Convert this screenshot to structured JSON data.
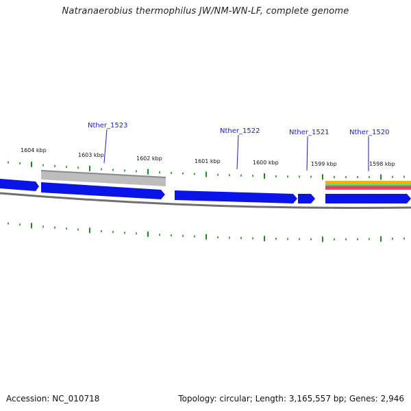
{
  "title": "Natranaerobius thermophilus JW/NM-WN-LF, complete genome",
  "footer": {
    "accession": "Accession: NC_010718",
    "topology": "Topology: circular; Length: 3,165,557 bp; Genes: 2,946"
  },
  "colors": {
    "gene": "#0a14e6",
    "gene_label": "#1a1acc",
    "backbone": "#6f6f6f",
    "tick": "#1f8a1f",
    "region": "#b4b4b4"
  },
  "kbp_labels": [
    "1604 kbp",
    "1603 kbp",
    "1602 kbp",
    "1601 kbp",
    "1600 kbp",
    "1599 kbp",
    "1598 kbp"
  ],
  "gene_labels": [
    "Nther_1523",
    "Nther_1522",
    "Nther_1521",
    "Nther_1520"
  ]
}
